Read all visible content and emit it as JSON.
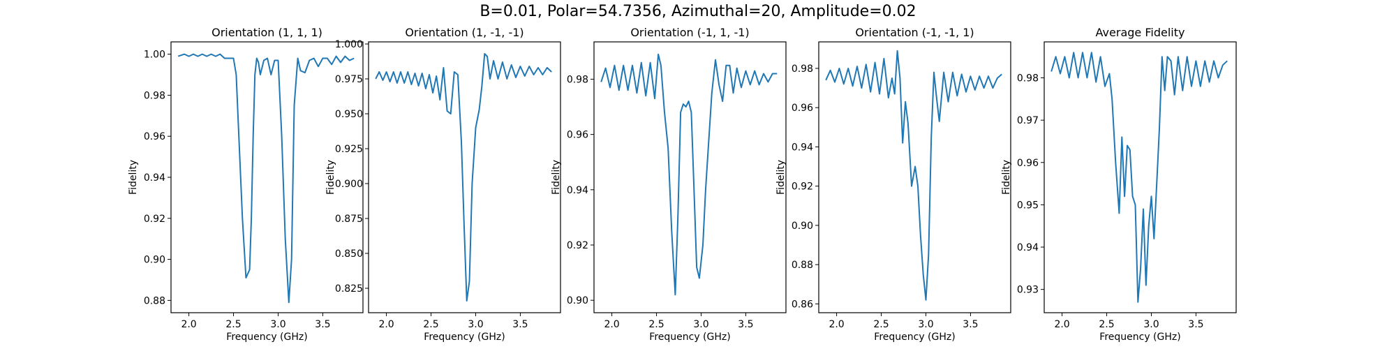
{
  "figure": {
    "suptitle": "B=0.01, Polar=54.7356, Azimuthal=20, Amplitude=0.02",
    "line_color": "#1f77b4"
  },
  "chart_data": [
    {
      "type": "line",
      "title": "Orientation (1, 1, 1)",
      "xlabel": "Frequency (GHz)",
      "ylabel": "Fidelity",
      "xlim": [
        1.8,
        3.95
      ],
      "ylim": [
        0.874,
        1.006
      ],
      "xticks": [
        2.0,
        2.5,
        3.0,
        3.5
      ],
      "xtick_labels": [
        "2.0",
        "2.5",
        "3.0",
        "3.5"
      ],
      "yticks": [
        0.88,
        0.9,
        0.92,
        0.94,
        0.96,
        0.98,
        1.0
      ],
      "ytick_labels": [
        "0.88",
        "0.90",
        "0.92",
        "0.94",
        "0.96",
        "0.98",
        "1.00"
      ],
      "x": [
        1.88,
        1.95,
        2.0,
        2.05,
        2.1,
        2.15,
        2.2,
        2.25,
        2.3,
        2.35,
        2.4,
        2.45,
        2.5,
        2.53,
        2.56,
        2.6,
        2.64,
        2.68,
        2.7,
        2.72,
        2.74,
        2.76,
        2.78,
        2.8,
        2.84,
        2.88,
        2.92,
        2.96,
        3.0,
        3.04,
        3.08,
        3.12,
        3.15,
        3.18,
        3.22,
        3.25,
        3.3,
        3.35,
        3.4,
        3.45,
        3.5,
        3.55,
        3.6,
        3.65,
        3.7,
        3.75,
        3.8,
        3.85
      ],
      "y": [
        0.999,
        1.0,
        0.999,
        1.0,
        0.999,
        1.0,
        0.999,
        1.0,
        0.999,
        1.0,
        0.998,
        0.998,
        0.998,
        0.99,
        0.96,
        0.92,
        0.891,
        0.895,
        0.92,
        0.96,
        0.99,
        0.998,
        0.996,
        0.99,
        0.997,
        0.998,
        0.99,
        0.997,
        0.997,
        0.96,
        0.91,
        0.879,
        0.9,
        0.975,
        0.998,
        0.992,
        0.991,
        0.997,
        0.998,
        0.994,
        0.998,
        0.998,
        0.995,
        0.999,
        0.996,
        0.999,
        0.997,
        0.998
      ]
    },
    {
      "type": "line",
      "title": "Orientation (1, -1, -1)",
      "xlabel": "Frequency (GHz)",
      "ylabel": "Fidelity",
      "xlim": [
        1.8,
        3.95
      ],
      "ylim": [
        0.8075,
        1.0015
      ],
      "xticks": [
        2.0,
        2.5,
        3.0,
        3.5
      ],
      "xtick_labels": [
        "2.0",
        "2.5",
        "3.0",
        "3.5"
      ],
      "yticks": [
        0.825,
        0.85,
        0.875,
        0.9,
        0.925,
        0.95,
        0.975,
        1.0
      ],
      "ytick_labels": [
        "0.825",
        "0.850",
        "0.875",
        "0.900",
        "0.925",
        "0.950",
        "0.975",
        "1.000"
      ],
      "x": [
        1.88,
        1.92,
        1.96,
        2.0,
        2.04,
        2.08,
        2.12,
        2.16,
        2.2,
        2.24,
        2.28,
        2.32,
        2.36,
        2.4,
        2.44,
        2.48,
        2.52,
        2.56,
        2.6,
        2.64,
        2.68,
        2.72,
        2.76,
        2.8,
        2.84,
        2.87,
        2.9,
        2.93,
        2.96,
        3.0,
        3.04,
        3.07,
        3.1,
        3.13,
        3.16,
        3.2,
        3.25,
        3.3,
        3.35,
        3.4,
        3.45,
        3.5,
        3.55,
        3.6,
        3.65,
        3.7,
        3.75,
        3.8,
        3.85
      ],
      "y": [
        0.975,
        0.98,
        0.974,
        0.98,
        0.973,
        0.98,
        0.972,
        0.98,
        0.972,
        0.98,
        0.971,
        0.979,
        0.97,
        0.979,
        0.968,
        0.978,
        0.965,
        0.977,
        0.96,
        0.983,
        0.952,
        0.95,
        0.98,
        0.978,
        0.93,
        0.87,
        0.816,
        0.83,
        0.9,
        0.94,
        0.953,
        0.97,
        0.993,
        0.991,
        0.975,
        0.988,
        0.975,
        0.987,
        0.975,
        0.985,
        0.976,
        0.984,
        0.977,
        0.984,
        0.978,
        0.983,
        0.978,
        0.983,
        0.98
      ]
    },
    {
      "type": "line",
      "title": "Orientation (-1, 1, -1)",
      "xlabel": "Frequency (GHz)",
      "ylabel": "Fidelity",
      "xlim": [
        1.8,
        3.95
      ],
      "ylim": [
        0.8955,
        0.9935
      ],
      "xticks": [
        2.0,
        2.5,
        3.0,
        3.5
      ],
      "xtick_labels": [
        "2.0",
        "2.5",
        "3.0",
        "3.5"
      ],
      "yticks": [
        0.9,
        0.92,
        0.94,
        0.96,
        0.98
      ],
      "ytick_labels": [
        "0.90",
        "0.92",
        "0.94",
        "0.96",
        "0.98"
      ],
      "x": [
        1.88,
        1.93,
        1.98,
        2.03,
        2.08,
        2.13,
        2.18,
        2.23,
        2.28,
        2.33,
        2.38,
        2.43,
        2.48,
        2.52,
        2.55,
        2.59,
        2.63,
        2.67,
        2.71,
        2.74,
        2.77,
        2.8,
        2.83,
        2.86,
        2.89,
        2.92,
        2.95,
        2.98,
        3.02,
        3.05,
        3.08,
        3.12,
        3.16,
        3.2,
        3.24,
        3.28,
        3.32,
        3.36,
        3.4,
        3.45,
        3.5,
        3.55,
        3.6,
        3.65,
        3.7,
        3.75,
        3.8,
        3.85
      ],
      "y": [
        0.979,
        0.984,
        0.977,
        0.985,
        0.976,
        0.985,
        0.976,
        0.985,
        0.975,
        0.986,
        0.974,
        0.986,
        0.973,
        0.989,
        0.985,
        0.968,
        0.955,
        0.925,
        0.902,
        0.93,
        0.968,
        0.971,
        0.97,
        0.972,
        0.968,
        0.94,
        0.912,
        0.908,
        0.92,
        0.94,
        0.955,
        0.975,
        0.987,
        0.978,
        0.972,
        0.985,
        0.985,
        0.975,
        0.984,
        0.977,
        0.983,
        0.978,
        0.983,
        0.978,
        0.982,
        0.979,
        0.982,
        0.982
      ]
    },
    {
      "type": "line",
      "title": "Orientation (-1, -1, 1)",
      "xlabel": "Frequency (GHz)",
      "ylabel": "Fidelity",
      "xlim": [
        1.8,
        3.95
      ],
      "ylim": [
        0.8555,
        0.9935
      ],
      "xticks": [
        2.0,
        2.5,
        3.0,
        3.5
      ],
      "xtick_labels": [
        "2.0",
        "2.5",
        "3.0",
        "3.5"
      ],
      "yticks": [
        0.86,
        0.88,
        0.9,
        0.92,
        0.94,
        0.96,
        0.98
      ],
      "ytick_labels": [
        "0.86",
        "0.88",
        "0.90",
        "0.92",
        "0.94",
        "0.96",
        "0.98"
      ],
      "x": [
        1.88,
        1.93,
        1.98,
        2.03,
        2.08,
        2.13,
        2.18,
        2.23,
        2.28,
        2.33,
        2.38,
        2.43,
        2.48,
        2.53,
        2.58,
        2.62,
        2.65,
        2.68,
        2.71,
        2.74,
        2.77,
        2.8,
        2.84,
        2.88,
        2.91,
        2.94,
        2.97,
        3.0,
        3.03,
        3.06,
        3.09,
        3.12,
        3.15,
        3.2,
        3.25,
        3.3,
        3.35,
        3.4,
        3.45,
        3.5,
        3.55,
        3.6,
        3.65,
        3.7,
        3.75,
        3.8,
        3.85
      ],
      "y": [
        0.974,
        0.979,
        0.973,
        0.98,
        0.972,
        0.98,
        0.971,
        0.981,
        0.97,
        0.982,
        0.968,
        0.983,
        0.967,
        0.985,
        0.965,
        0.975,
        0.967,
        0.989,
        0.975,
        0.942,
        0.963,
        0.952,
        0.92,
        0.93,
        0.92,
        0.895,
        0.875,
        0.862,
        0.885,
        0.945,
        0.978,
        0.965,
        0.953,
        0.978,
        0.963,
        0.978,
        0.966,
        0.977,
        0.968,
        0.976,
        0.969,
        0.976,
        0.97,
        0.976,
        0.97,
        0.975,
        0.977
      ]
    },
    {
      "type": "line",
      "title": "Average Fidelity",
      "xlabel": "Frequency (GHz)",
      "ylabel": "Fidelity",
      "xlim": [
        1.8,
        3.95
      ],
      "ylim": [
        0.9245,
        0.9885
      ],
      "xticks": [
        2.0,
        2.5,
        3.0,
        3.5
      ],
      "xtick_labels": [
        "2.0",
        "2.5",
        "3.0",
        "3.5"
      ],
      "yticks": [
        0.93,
        0.94,
        0.95,
        0.96,
        0.97,
        0.98
      ],
      "ytick_labels": [
        "0.93",
        "0.94",
        "0.95",
        "0.96",
        "0.97",
        "0.98"
      ],
      "x": [
        1.88,
        1.93,
        1.98,
        2.03,
        2.08,
        2.13,
        2.18,
        2.23,
        2.28,
        2.33,
        2.38,
        2.43,
        2.48,
        2.53,
        2.56,
        2.6,
        2.64,
        2.67,
        2.7,
        2.73,
        2.76,
        2.79,
        2.82,
        2.85,
        2.88,
        2.91,
        2.94,
        2.97,
        3.0,
        3.03,
        3.06,
        3.09,
        3.12,
        3.15,
        3.18,
        3.22,
        3.26,
        3.3,
        3.35,
        3.4,
        3.45,
        3.5,
        3.55,
        3.6,
        3.65,
        3.7,
        3.75,
        3.8,
        3.85
      ],
      "y": [
        0.9815,
        0.985,
        0.981,
        0.985,
        0.98,
        0.986,
        0.98,
        0.986,
        0.98,
        0.986,
        0.979,
        0.985,
        0.978,
        0.981,
        0.975,
        0.96,
        0.948,
        0.966,
        0.952,
        0.964,
        0.963,
        0.952,
        0.95,
        0.927,
        0.935,
        0.949,
        0.931,
        0.945,
        0.952,
        0.942,
        0.955,
        0.968,
        0.985,
        0.977,
        0.985,
        0.984,
        0.976,
        0.985,
        0.977,
        0.985,
        0.978,
        0.984,
        0.978,
        0.984,
        0.979,
        0.984,
        0.98,
        0.983,
        0.984
      ]
    }
  ]
}
